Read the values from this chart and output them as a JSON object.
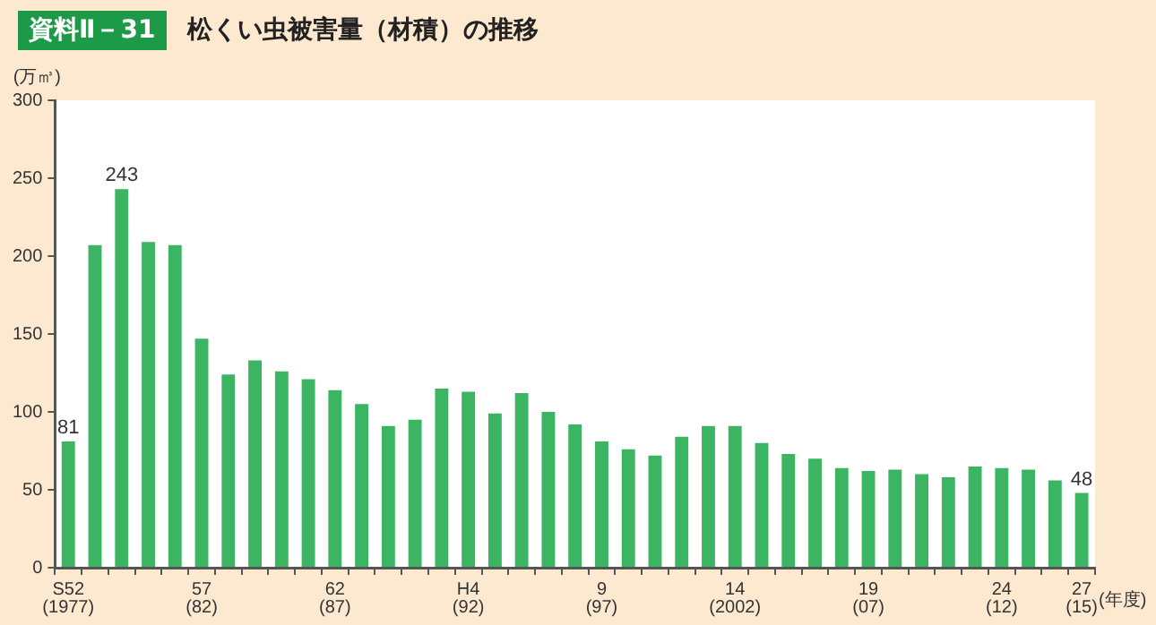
{
  "chart_data": {
    "type": "bar",
    "subtitle": "資料Ⅱ－31",
    "title": "松くい虫被害量（材積）の推移",
    "ylabel": "(万㎥)",
    "xlabel": "(年度)",
    "categories": [
      "S52\n(1977)",
      null,
      null,
      null,
      null,
      "57\n(82)",
      null,
      null,
      null,
      null,
      "62\n(87)",
      null,
      null,
      null,
      null,
      "H4\n(92)",
      null,
      null,
      null,
      null,
      "9\n(97)",
      null,
      null,
      null,
      null,
      "14\n(2002)",
      null,
      null,
      null,
      null,
      "19\n(07)",
      null,
      null,
      null,
      null,
      "24\n(12)",
      null,
      null,
      "27\n(15)"
    ],
    "values": [
      81,
      207,
      243,
      209,
      207,
      147,
      124,
      133,
      126,
      121,
      114,
      105,
      91,
      95,
      115,
      113,
      99,
      112,
      100,
      92,
      81,
      76,
      72,
      84,
      91,
      91,
      80,
      73,
      70,
      64,
      62,
      63,
      60,
      58,
      65,
      64,
      63,
      56,
      48
    ],
    "value_labels": [
      "81",
      null,
      "243",
      null,
      null,
      null,
      null,
      null,
      null,
      null,
      null,
      null,
      null,
      null,
      null,
      null,
      null,
      null,
      null,
      null,
      null,
      null,
      null,
      null,
      null,
      null,
      null,
      null,
      null,
      null,
      null,
      null,
      null,
      null,
      null,
      null,
      null,
      null,
      "48"
    ],
    "color": "#3cb563",
    "ylim": [
      0,
      300
    ],
    "yticks": [
      0,
      50,
      100,
      150,
      200,
      250,
      300
    ],
    "grid": false,
    "legend": false
  }
}
